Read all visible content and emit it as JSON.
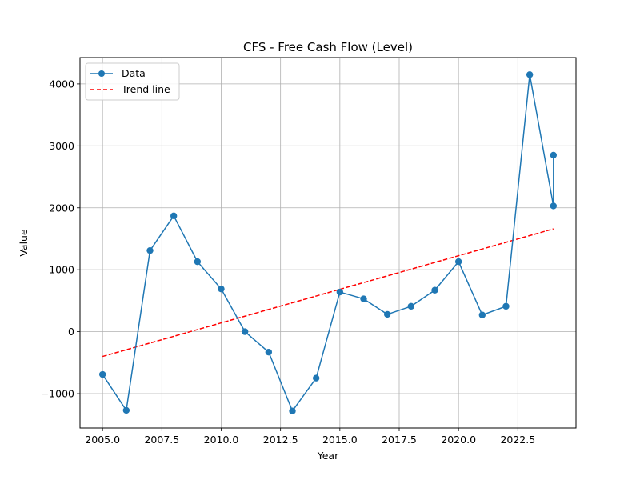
{
  "chart_data": {
    "type": "line",
    "title": "CFS - Free Cash Flow (Level)",
    "xlabel": "Year",
    "ylabel": "Value",
    "xlim": [
      2004.05,
      2024.95
    ],
    "ylim": [
      -1555,
      4425
    ],
    "xticks": [
      2005.0,
      2007.5,
      2010.0,
      2012.5,
      2015.0,
      2017.5,
      2020.0,
      2022.5
    ],
    "xtick_labels": [
      "2005.0",
      "2007.5",
      "2010.0",
      "2012.5",
      "2015.0",
      "2017.5",
      "2020.0",
      "2022.5"
    ],
    "yticks": [
      -1000,
      0,
      1000,
      2000,
      3000,
      4000
    ],
    "ytick_labels": [
      "−1000",
      "0",
      "1000",
      "2000",
      "3000",
      "4000"
    ],
    "grid": true,
    "legend_position": "top-left",
    "series": [
      {
        "name": "Data",
        "style": "line-with-markers",
        "color": "#1f77b4",
        "points": [
          {
            "x": 2005,
            "y": -690
          },
          {
            "x": 2006,
            "y": -1270
          },
          {
            "x": 2007,
            "y": 1310
          },
          {
            "x": 2008,
            "y": 1870
          },
          {
            "x": 2009,
            "y": 1130
          },
          {
            "x": 2010,
            "y": 690
          },
          {
            "x": 2011,
            "y": 0
          },
          {
            "x": 2012,
            "y": -330
          },
          {
            "x": 2013,
            "y": -1280
          },
          {
            "x": 2014,
            "y": -750
          },
          {
            "x": 2015,
            "y": 640
          },
          {
            "x": 2016,
            "y": 530
          },
          {
            "x": 2017,
            "y": 280
          },
          {
            "x": 2018,
            "y": 410
          },
          {
            "x": 2019,
            "y": 670
          },
          {
            "x": 2020,
            "y": 1130
          },
          {
            "x": 2021,
            "y": 270
          },
          {
            "x": 2022,
            "y": 410
          },
          {
            "x": 2023,
            "y": 4150
          },
          {
            "x": 2024,
            "y": 2030
          },
          {
            "x": 2024,
            "y": 2850
          }
        ]
      },
      {
        "name": "Trend line",
        "style": "dashed",
        "color": "#ff0000",
        "points": [
          {
            "x": 2005,
            "y": -400
          },
          {
            "x": 2024,
            "y": 1660
          }
        ]
      }
    ]
  }
}
